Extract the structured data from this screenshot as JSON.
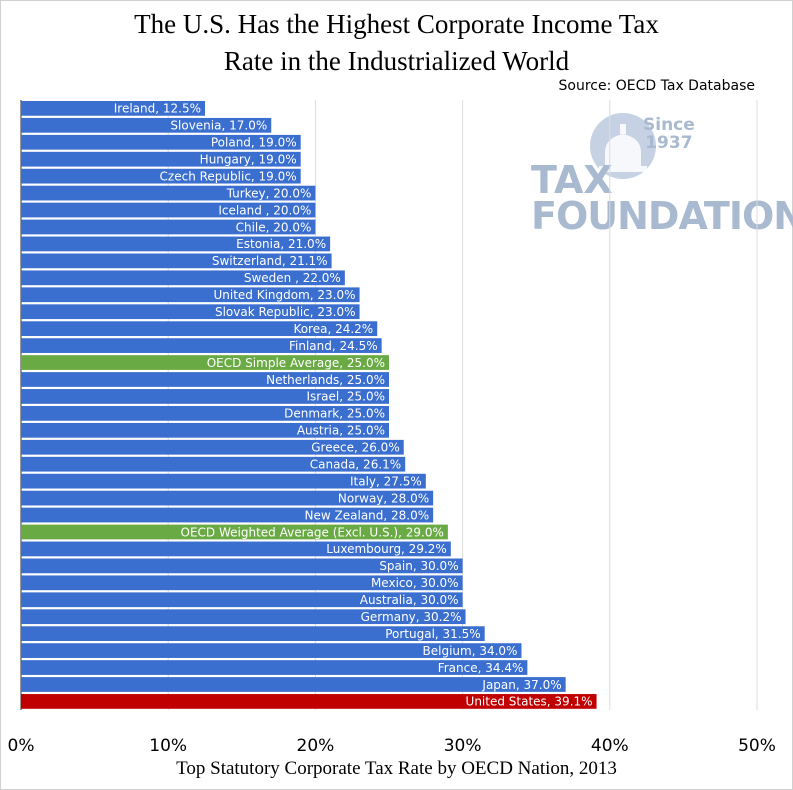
{
  "chart_data": {
    "type": "bar",
    "orientation": "horizontal",
    "title": "The U.S. Has the Highest Corporate Income Tax Rate in the Industrialized World",
    "title_lines": [
      "The U.S. Has the Highest Corporate Income Tax",
      "Rate in the Industrialized World"
    ],
    "source": "Source: OECD Tax Database",
    "xlabel": "Top Statutory Corporate Tax Rate by OECD Nation, 2013",
    "xlim": [
      0,
      50
    ],
    "xticks": [
      "0%",
      "10%",
      "20%",
      "30%",
      "40%",
      "50%"
    ],
    "grid": true,
    "colors": {
      "default": "#3a6ecf",
      "average": "#6aaa45",
      "highlight": "#c00000"
    },
    "bars": [
      {
        "label": "Ireland, 12.5%",
        "value": 12.5,
        "kind": "default"
      },
      {
        "label": "Slovenia, 17.0%",
        "value": 17.0,
        "kind": "default"
      },
      {
        "label": "Poland, 19.0%",
        "value": 19.0,
        "kind": "default"
      },
      {
        "label": "Hungary, 19.0%",
        "value": 19.0,
        "kind": "default"
      },
      {
        "label": "Czech Republic, 19.0%",
        "value": 19.0,
        "kind": "default"
      },
      {
        "label": "Turkey, 20.0%",
        "value": 20.0,
        "kind": "default"
      },
      {
        "label": "Iceland , 20.0%",
        "value": 20.0,
        "kind": "default"
      },
      {
        "label": "Chile, 20.0%",
        "value": 20.0,
        "kind": "default"
      },
      {
        "label": "Estonia, 21.0%",
        "value": 21.0,
        "kind": "default"
      },
      {
        "label": "Switzerland, 21.1%",
        "value": 21.1,
        "kind": "default"
      },
      {
        "label": "Sweden    , 22.0%",
        "value": 22.0,
        "kind": "default"
      },
      {
        "label": "United Kingdom, 23.0%",
        "value": 23.0,
        "kind": "default"
      },
      {
        "label": "Slovak Republic, 23.0%",
        "value": 23.0,
        "kind": "default"
      },
      {
        "label": "Korea, 24.2%",
        "value": 24.2,
        "kind": "default"
      },
      {
        "label": "Finland, 24.5%",
        "value": 24.5,
        "kind": "default"
      },
      {
        "label": "OECD Simple Average, 25.0%",
        "value": 25.0,
        "kind": "average"
      },
      {
        "label": "Netherlands, 25.0%",
        "value": 25.0,
        "kind": "default"
      },
      {
        "label": "Israel, 25.0%",
        "value": 25.0,
        "kind": "default"
      },
      {
        "label": "Denmark, 25.0%",
        "value": 25.0,
        "kind": "default"
      },
      {
        "label": "Austria, 25.0%",
        "value": 25.0,
        "kind": "default"
      },
      {
        "label": "Greece, 26.0%",
        "value": 26.0,
        "kind": "default"
      },
      {
        "label": "Canada, 26.1%",
        "value": 26.1,
        "kind": "default"
      },
      {
        "label": "Italy, 27.5%",
        "value": 27.5,
        "kind": "default"
      },
      {
        "label": "Norway, 28.0%",
        "value": 28.0,
        "kind": "default"
      },
      {
        "label": "New Zealand, 28.0%",
        "value": 28.0,
        "kind": "default"
      },
      {
        "label": "OECD Weighted Average (Excl. U.S.), 29.0%",
        "value": 29.0,
        "kind": "average"
      },
      {
        "label": "Luxembourg, 29.2%",
        "value": 29.2,
        "kind": "default"
      },
      {
        "label": "Spain, 30.0%",
        "value": 30.0,
        "kind": "default"
      },
      {
        "label": "Mexico, 30.0%",
        "value": 30.0,
        "kind": "default"
      },
      {
        "label": "Australia, 30.0%",
        "value": 30.0,
        "kind": "default"
      },
      {
        "label": "Germany, 30.2%",
        "value": 30.2,
        "kind": "default"
      },
      {
        "label": "Portugal, 31.5%",
        "value": 31.5,
        "kind": "default"
      },
      {
        "label": "Belgium, 34.0%",
        "value": 34.0,
        "kind": "default"
      },
      {
        "label": "France, 34.4%",
        "value": 34.4,
        "kind": "default"
      },
      {
        "label": "Japan, 37.0%",
        "value": 37.0,
        "kind": "default"
      },
      {
        "label": "United States, 39.1%",
        "value": 39.1,
        "kind": "highlight"
      }
    ]
  },
  "logo": {
    "line1": "TAX",
    "line2": "FOUNDATION",
    "since_line1": "Since",
    "since_line2": "1937",
    "icon": "capitol-dome-icon",
    "color": "#a9b9d0"
  }
}
